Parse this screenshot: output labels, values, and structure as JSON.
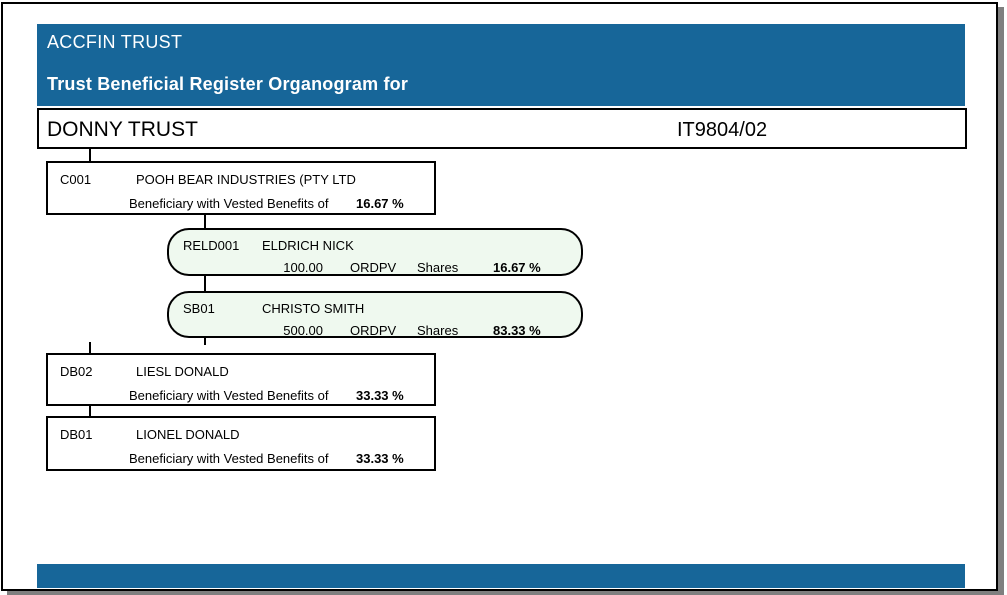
{
  "header": {
    "app_title": "ACCFIN TRUST",
    "report_title": "Trust Beneficial Register Organogram for"
  },
  "trust": {
    "name": "DONNY TRUST",
    "number": "IT9804/02"
  },
  "nodes": [
    {
      "code": "C001",
      "name": "POOH BEAR INDUSTRIES (PTY LTD",
      "detail_label": "Beneficiary with Vested Benefits of",
      "percent": "16.67 %"
    },
    {
      "code": "RELD001",
      "name": "ELDRICH NICK",
      "quantity": "100.00",
      "share_type": "ORDPV",
      "unit": "Shares",
      "percent": "16.67 %"
    },
    {
      "code": "SB01",
      "name": "CHRISTO SMITH",
      "quantity": "500.00",
      "share_type": "ORDPV",
      "unit": "Shares",
      "percent": "83.33 %"
    },
    {
      "code": "DB02",
      "name": "LIESL DONALD",
      "detail_label": "Beneficiary with Vested Benefits of",
      "percent": "33.33 %"
    },
    {
      "code": "DB01",
      "name": "LIONEL DONALD",
      "detail_label": "Beneficiary with Vested Benefits of",
      "percent": "33.33 %"
    }
  ],
  "colors": {
    "header_bg": "#176699",
    "shareholder_box_bg": "#eff9ef",
    "border": "#000000",
    "shadow": "#7f7f7f"
  }
}
